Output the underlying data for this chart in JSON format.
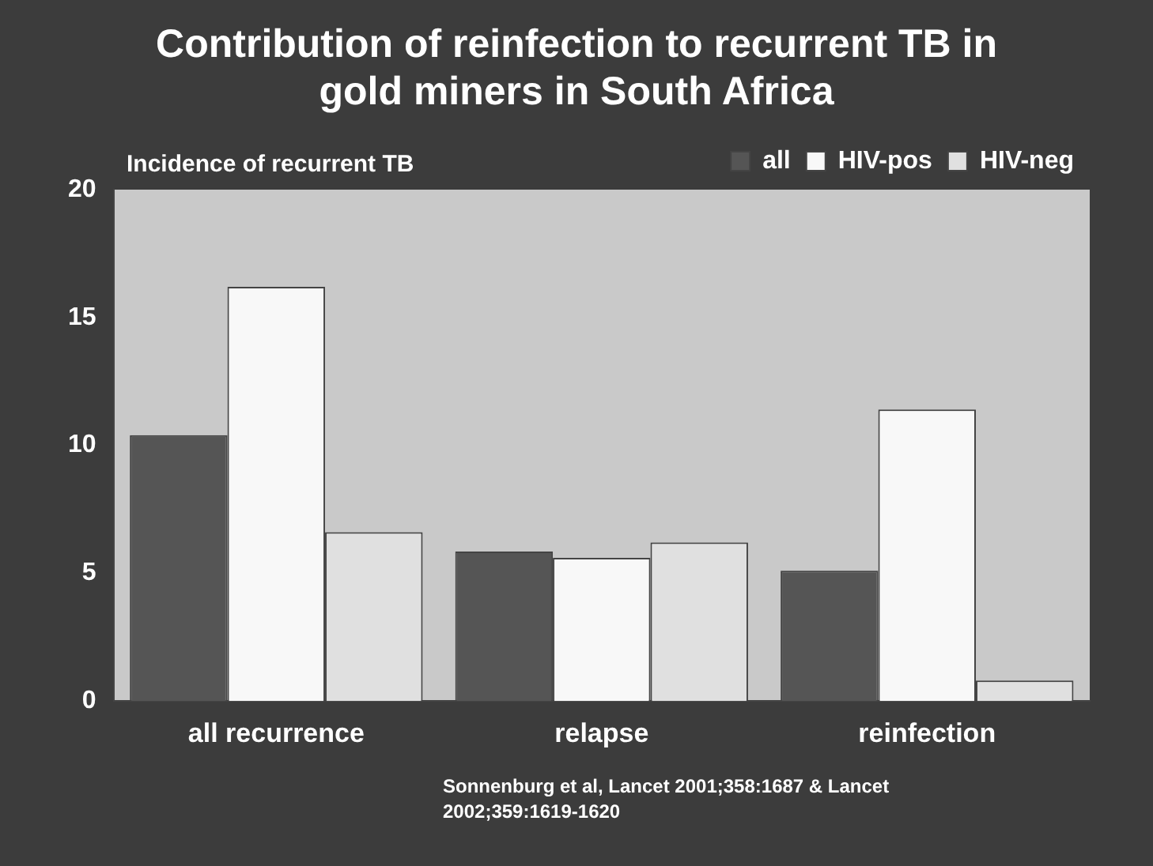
{
  "chart_data": {
    "type": "bar",
    "title": [
      "Contribution of reinfection to recurrent TB in",
      "gold miners in South Africa"
    ],
    "ylabel": "Incidence of recurrent TB",
    "categories": [
      "all recurrence",
      "relapse",
      "reinfection"
    ],
    "series": [
      {
        "name": "all",
        "color": "#555555",
        "values": [
          10.4,
          5.85,
          5.1
        ]
      },
      {
        "name": "HIV-pos",
        "color": "#f8f8f8",
        "values": [
          16.2,
          5.6,
          11.4
        ]
      },
      {
        "name": "HIV-neg",
        "color": "#e0e0e0",
        "values": [
          6.6,
          6.2,
          0.8
        ]
      }
    ],
    "ylim": [
      0,
      20
    ],
    "yticks": [
      0,
      5,
      10,
      15,
      20
    ],
    "grid": false,
    "legend": "top right",
    "annotations": [
      "Sonnenburg et al, Lancet 2001;358:1687 & Lancet 2002;359:1619-1620"
    ]
  }
}
